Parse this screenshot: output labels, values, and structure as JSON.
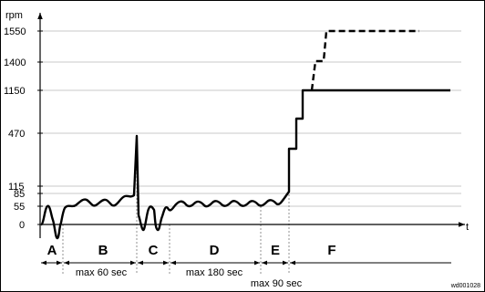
{
  "diagram": {
    "y_axis_label": "rpm",
    "x_axis_label": "t",
    "y_ticks": [
      "1550",
      "1400",
      "1150",
      "470",
      "115",
      "85",
      "55",
      "0"
    ],
    "phases": [
      "A",
      "B",
      "C",
      "D",
      "E",
      "F"
    ],
    "durations": {
      "B": "max 60 sec",
      "D": "max 180 sec",
      "E": "max 90 sec"
    },
    "reference": "wd001028"
  }
}
